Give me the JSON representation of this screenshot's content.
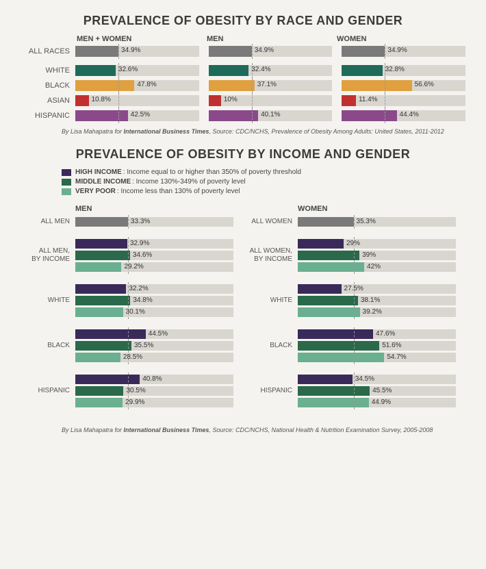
{
  "colors": {
    "bg_track": "#d9d6d0",
    "all_races": "#7a7a7a",
    "white": "#1f6b5a",
    "black": "#e0a040",
    "asian": "#c03030",
    "hispanic": "#8a4a8a",
    "high_income": "#3a2a5a",
    "middle_income": "#2a6a4a",
    "very_poor": "#6ab090",
    "overall_gray": "#7a7a7a"
  },
  "chart1": {
    "title": "PREVALENCE OF OBESITY BY RACE AND GENDER",
    "columns": [
      "MEN + WOMEN",
      "MEN",
      "WOMEN"
    ],
    "max": 100,
    "ref": 34.9,
    "rows": [
      {
        "label": "ALL RACES",
        "color_key": "all_races",
        "gap": false,
        "values": [
          34.9,
          34.9,
          34.9
        ]
      },
      {
        "label": "WHITE",
        "color_key": "white",
        "gap": true,
        "values": [
          32.6,
          32.4,
          32.8
        ]
      },
      {
        "label": "BLACK",
        "color_key": "black",
        "gap": false,
        "values": [
          47.8,
          37.1,
          56.6
        ]
      },
      {
        "label": "ASIAN",
        "color_key": "asian",
        "gap": false,
        "values": [
          10.8,
          10.0,
          11.4
        ]
      },
      {
        "label": "HISPANIC",
        "color_key": "hispanic",
        "gap": false,
        "values": [
          42.5,
          40.1,
          44.4
        ]
      }
    ],
    "credit_prefix": "By Lisa Mahapatra for ",
    "credit_pub": "International Business Times",
    "credit_suffix": ", Source: CDC/NCHS, Prevalence of Obesity Among Adults: United States, 2011-2012"
  },
  "chart2": {
    "title": "PREVALENCE OF OBESITY BY INCOME AND GENDER",
    "legend": [
      {
        "key": "high_income",
        "label": "HIGH INCOME",
        "desc": ": Income equal to or higher than 350% of poverty threshold"
      },
      {
        "key": "middle_income",
        "label": "MIDDLE INCOME",
        "desc": ": Income 130%-349% of poverty level"
      },
      {
        "key": "very_poor",
        "label": "VERY POOR",
        "desc": ": Income less than 130% of poverty level"
      }
    ],
    "max": 100,
    "ref_men": 33.3,
    "ref_women": 35.3,
    "men": {
      "title": "MEN",
      "overall": {
        "label": "ALL MEN",
        "value": 33.3
      },
      "groups": [
        {
          "label": "ALL MEN,\nBY INCOME",
          "values": [
            32.9,
            34.6,
            29.2
          ]
        },
        {
          "label": "WHITE",
          "values": [
            32.2,
            34.8,
            30.1
          ]
        },
        {
          "label": "BLACK",
          "values": [
            44.5,
            35.5,
            28.5
          ]
        },
        {
          "label": "HISPANIC",
          "values": [
            40.8,
            30.5,
            29.9
          ]
        }
      ]
    },
    "women": {
      "title": "WOMEN",
      "overall": {
        "label": "ALL WOMEN",
        "value": 35.3
      },
      "groups": [
        {
          "label": "ALL WOMEN,\nBY INCOME",
          "values": [
            29.0,
            39.0,
            42.0
          ]
        },
        {
          "label": "WHITE",
          "values": [
            27.5,
            38.1,
            39.2
          ]
        },
        {
          "label": "BLACK",
          "values": [
            47.6,
            51.6,
            54.7
          ]
        },
        {
          "label": "HISPANIC",
          "values": [
            34.5,
            45.5,
            44.9
          ]
        }
      ]
    },
    "credit_prefix": "By Lisa Mahapatra for ",
    "credit_pub": "International Business Times",
    "credit_suffix": ", Source: CDC/NCHS, National Health & Nutrition Examination Survey, 2005-2008"
  }
}
